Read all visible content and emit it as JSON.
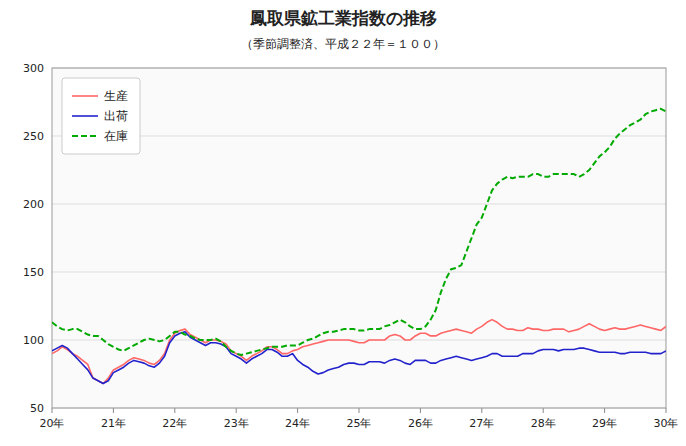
{
  "chart_data": {
    "type": "line",
    "title": "鳳取県鉱工業指数の推移",
    "subtitle": "（季節調整済、平成２２年＝１００）",
    "categories": [
      "20年",
      null,
      null,
      null,
      null,
      null,
      null,
      null,
      null,
      null,
      null,
      null,
      "21年",
      null,
      null,
      null,
      null,
      null,
      null,
      null,
      null,
      null,
      null,
      null,
      "22年",
      null,
      null,
      null,
      null,
      null,
      null,
      null,
      null,
      null,
      null,
      null,
      "23年",
      null,
      null,
      null,
      null,
      null,
      null,
      null,
      null,
      null,
      null,
      null,
      "24年",
      null,
      null,
      null,
      null,
      null,
      null,
      null,
      null,
      null,
      null,
      null,
      "25年",
      null,
      null,
      null,
      null,
      null,
      null,
      null,
      null,
      null,
      null,
      null,
      "26年",
      null,
      null,
      null,
      null,
      null,
      null,
      null,
      null,
      null,
      null,
      null,
      "27年",
      null,
      null,
      null,
      null,
      null,
      null,
      null,
      null,
      null,
      null,
      null,
      "28年",
      null,
      null,
      null,
      null,
      null,
      null,
      null,
      null,
      null,
      null,
      null,
      "29年",
      null,
      null,
      null,
      null,
      null,
      null,
      null,
      null,
      null,
      null,
      null,
      "30年"
    ],
    "series": [
      {
        "name": "生産",
        "color": "#ff6666",
        "line_style": "solid",
        "values": [
          90,
          92,
          95,
          93,
          90,
          88,
          85,
          82,
          72,
          70,
          68,
          72,
          78,
          80,
          82,
          85,
          87,
          86,
          85,
          83,
          82,
          85,
          90,
          100,
          105,
          107,
          108,
          104,
          102,
          100,
          98,
          100,
          100,
          99,
          97,
          92,
          90,
          88,
          85,
          88,
          90,
          92,
          95,
          95,
          93,
          90,
          90,
          92,
          93,
          95,
          96,
          97,
          98,
          99,
          100,
          100,
          100,
          100,
          100,
          99,
          98,
          98,
          100,
          100,
          100,
          100,
          103,
          104,
          103,
          100,
          100,
          103,
          105,
          105,
          103,
          103,
          105,
          106,
          107,
          108,
          107,
          106,
          105,
          108,
          110,
          113,
          115,
          113,
          110,
          108,
          108,
          107,
          107,
          109,
          108,
          108,
          107,
          107,
          108,
          108,
          108,
          106,
          107,
          108,
          110,
          112,
          110,
          108,
          107,
          108,
          109,
          108,
          108,
          109,
          110,
          111,
          110,
          109,
          108,
          107,
          110
        ]
      },
      {
        "name": "出荷",
        "color": "#2222cc",
        "line_style": "solid",
        "values": [
          92,
          94,
          96,
          94,
          90,
          86,
          82,
          78,
          72,
          70,
          68,
          70,
          76,
          78,
          80,
          83,
          85,
          84,
          83,
          81,
          80,
          83,
          88,
          98,
          103,
          105,
          106,
          102,
          100,
          98,
          96,
          98,
          98,
          97,
          95,
          90,
          88,
          86,
          83,
          86,
          88,
          90,
          93,
          93,
          91,
          88,
          88,
          90,
          85,
          82,
          80,
          77,
          75,
          76,
          78,
          79,
          80,
          82,
          83,
          83,
          82,
          82,
          84,
          84,
          84,
          83,
          85,
          86,
          85,
          83,
          82,
          85,
          85,
          85,
          83,
          83,
          85,
          86,
          87,
          88,
          87,
          86,
          85,
          86,
          87,
          88,
          90,
          90,
          88,
          88,
          88,
          88,
          90,
          90,
          90,
          92,
          93,
          93,
          93,
          92,
          93,
          93,
          93,
          94,
          94,
          93,
          92,
          91,
          91,
          91,
          91,
          90,
          90,
          91,
          91,
          91,
          91,
          90,
          90,
          90,
          92
        ]
      },
      {
        "name": "在庫",
        "color": "#00aa00",
        "line_style": "dashed",
        "values": [
          113,
          110,
          108,
          107,
          108,
          108,
          106,
          104,
          103,
          103,
          100,
          97,
          95,
          93,
          92,
          94,
          96,
          98,
          100,
          101,
          100,
          99,
          100,
          103,
          106,
          106,
          104,
          103,
          101,
          100,
          100,
          100,
          101,
          99,
          95,
          92,
          90,
          89,
          90,
          91,
          92,
          93,
          94,
          95,
          95,
          95,
          96,
          96,
          96,
          98,
          100,
          101,
          103,
          105,
          106,
          106,
          107,
          108,
          108,
          108,
          107,
          107,
          108,
          108,
          108,
          110,
          111,
          113,
          115,
          113,
          110,
          108,
          108,
          110,
          115,
          122,
          135,
          145,
          152,
          153,
          155,
          165,
          175,
          185,
          190,
          200,
          210,
          215,
          218,
          220,
          219,
          220,
          220,
          220,
          222,
          222,
          220,
          220,
          222,
          222,
          222,
          222,
          222,
          220,
          222,
          225,
          230,
          235,
          238,
          242,
          248,
          252,
          255,
          258,
          260,
          262,
          266,
          268,
          269,
          270,
          268
        ]
      }
    ],
    "ylim": [
      50,
      300
    ],
    "yticks": [
      50,
      100,
      150,
      200,
      250,
      300
    ],
    "grid": true,
    "legend": "upper left"
  }
}
